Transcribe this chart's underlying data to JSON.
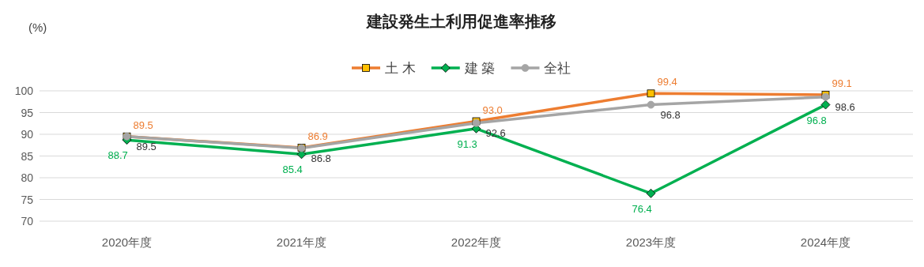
{
  "chart_data": {
    "type": "line",
    "title": "建設発生土利用促進率推移",
    "ylabel": "(%)",
    "categories": [
      "2020年度",
      "2021年度",
      "2022年度",
      "2023年度",
      "2024年度"
    ],
    "series": [
      {
        "name": "土 木",
        "color": "#ed7d31",
        "marker": "square",
        "values": [
          89.5,
          86.9,
          93.0,
          99.4,
          99.1
        ],
        "value_labels": [
          "89.5",
          "86.9",
          "93.0",
          "99.4",
          "99.1"
        ]
      },
      {
        "name": "建 築",
        "color": "#00b050",
        "marker": "diamond",
        "values": [
          88.7,
          85.4,
          91.3,
          76.4,
          96.8
        ],
        "value_labels": [
          "88.7",
          "85.4",
          "91.3",
          "76.4",
          "96.8"
        ]
      },
      {
        "name": "全社",
        "color": "#a5a5a5",
        "marker": "circle",
        "values": [
          89.5,
          86.8,
          92.6,
          96.8,
          98.6
        ],
        "value_labels": [
          "89.5",
          "86.8",
          "92.6",
          "96.8",
          "98.6"
        ]
      }
    ],
    "ylim": [
      70,
      100
    ],
    "yticks": [
      70,
      75,
      80,
      85,
      90,
      95,
      100
    ],
    "grid": "y",
    "legend": "top",
    "data_labels": true
  }
}
